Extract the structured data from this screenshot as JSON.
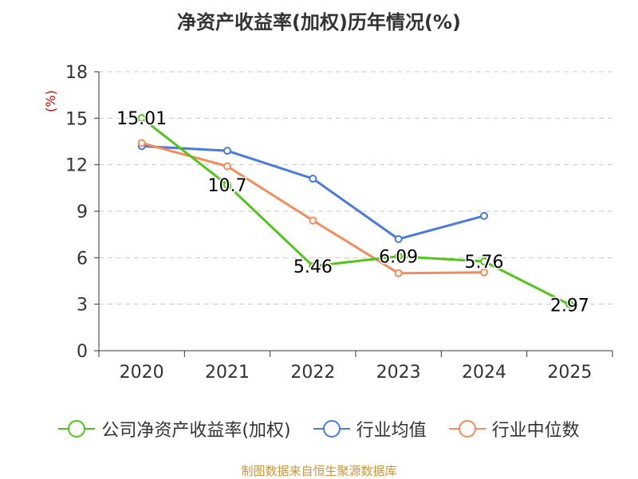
{
  "chart_data": {
    "type": "line",
    "title": "净资产收益率(加权)历年情况(%)",
    "ylabel": "(%)",
    "xlabel": "",
    "categories": [
      "2020",
      "2021",
      "2022",
      "2023",
      "2024",
      "2025"
    ],
    "ylim": [
      0,
      18
    ],
    "yticks": [
      0,
      3,
      6,
      9,
      12,
      15,
      18
    ],
    "grid": true,
    "legend_position": "bottom",
    "series": [
      {
        "name": "公司净资产收益率(加权)",
        "color": "#52c41a",
        "values": [
          15.01,
          10.7,
          5.46,
          6.09,
          5.76,
          2.97
        ],
        "labels": [
          "15.01",
          "10.7",
          "5.46",
          "6.09",
          "5.76",
          "2.97"
        ]
      },
      {
        "name": "行业均值",
        "color": "#4a7bd8",
        "values": [
          13.2,
          12.9,
          11.1,
          7.2,
          8.7,
          null
        ]
      },
      {
        "name": "行业中位数",
        "color": "#f28c5a",
        "values": [
          13.4,
          11.9,
          8.4,
          5.0,
          5.05,
          null
        ]
      }
    ]
  },
  "source_note": "制图数据来自恒生聚源数据库"
}
